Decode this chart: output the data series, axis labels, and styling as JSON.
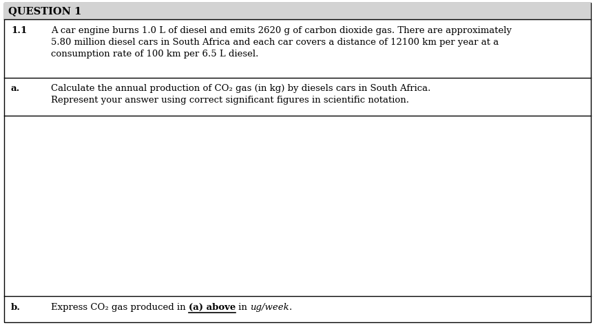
{
  "title": "QUESTION 1",
  "section_1_1_label": "1.1",
  "section_1_1_line1": "A car engine burns 1.0 L of diesel and emits 2620 g of carbon dioxide gas. There are approximately",
  "section_1_1_line2": "5.80 million diesel cars in South Africa and each car covers a distance of 12100 km per year at a",
  "section_1_1_line3": "consumption rate of 100 km per 6.5 L diesel.",
  "part_a_label": "a.",
  "part_a_line1": "Calculate the annual production of CO₂ gas (in kg) by diesels cars in South Africa.",
  "part_a_line2": "Represent your answer using correct significant figures in scientific notation.",
  "part_b_label": "b.",
  "part_b_text_before": "Express CO₂ gas produced in ",
  "part_b_underline": "(a) above",
  "part_b_text_after": " in ",
  "part_b_italic": "ug/week",
  "part_b_end": ".",
  "bg_header": "#d3d3d3",
  "bg_white": "#ffffff",
  "border_color": "#000000",
  "font_size_title": 10.5,
  "font_size_body": 9.5
}
